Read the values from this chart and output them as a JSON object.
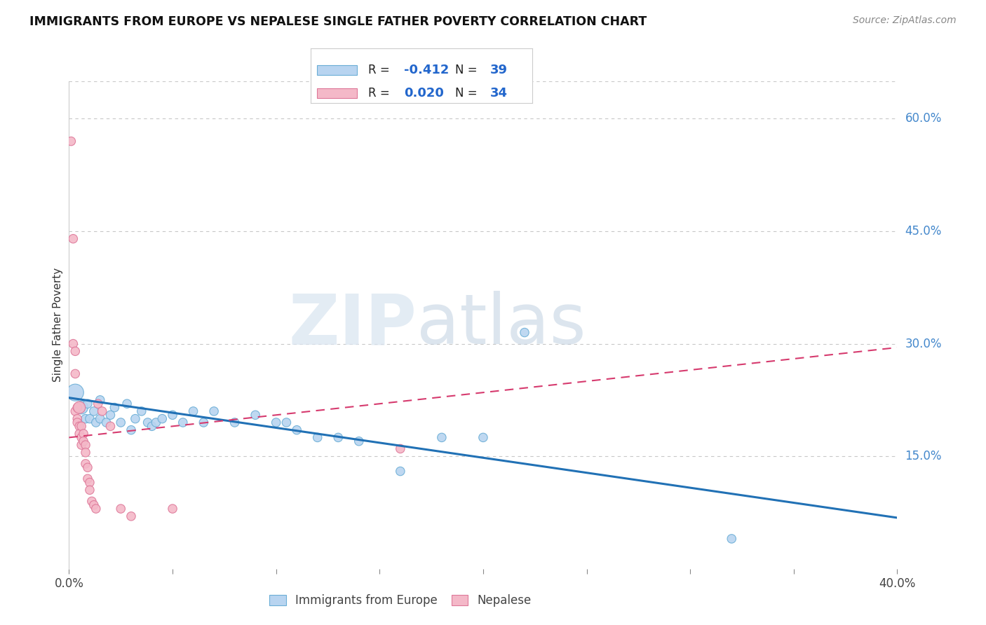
{
  "title": "IMMIGRANTS FROM EUROPE VS NEPALESE SINGLE FATHER POVERTY CORRELATION CHART",
  "source": "Source: ZipAtlas.com",
  "ylabel": "Single Father Poverty",
  "legend_labels": [
    "Immigrants from Europe",
    "Nepalese"
  ],
  "legend_r1_label": "R = ",
  "legend_r1_val": "-0.412",
  "legend_n1_label": "N = ",
  "legend_n1_val": "39",
  "legend_r2_label": "R = ",
  "legend_r2_val": "0.020",
  "legend_n2_label": "N = ",
  "legend_n2_val": "34",
  "watermark_zip": "ZIP",
  "watermark_atlas": "atlas",
  "xlim": [
    0.0,
    0.4
  ],
  "ylim": [
    0.0,
    0.65
  ],
  "xticks": [
    0.0,
    0.05,
    0.1,
    0.15,
    0.2,
    0.25,
    0.3,
    0.35,
    0.4
  ],
  "yticks_right": [
    0.6,
    0.45,
    0.3,
    0.15
  ],
  "ytick_labels_right": [
    "60.0%",
    "45.0%",
    "30.0%",
    "15.0%"
  ],
  "blue_fill": "#b8d4f0",
  "blue_edge": "#6baed6",
  "blue_line": "#2171b5",
  "pink_fill": "#f4b8c8",
  "pink_edge": "#de7899",
  "pink_line": "#d63a6e",
  "grid_color": "#c8c8c8",
  "blue_scatter_x": [
    0.003,
    0.006,
    0.008,
    0.009,
    0.01,
    0.012,
    0.013,
    0.015,
    0.015,
    0.018,
    0.02,
    0.022,
    0.025,
    0.028,
    0.03,
    0.032,
    0.035,
    0.038,
    0.04,
    0.042,
    0.045,
    0.05,
    0.055,
    0.06,
    0.065,
    0.07,
    0.08,
    0.09,
    0.1,
    0.105,
    0.11,
    0.12,
    0.13,
    0.14,
    0.16,
    0.18,
    0.2,
    0.22,
    0.32
  ],
  "blue_scatter_y": [
    0.235,
    0.215,
    0.2,
    0.22,
    0.2,
    0.21,
    0.195,
    0.2,
    0.225,
    0.195,
    0.205,
    0.215,
    0.195,
    0.22,
    0.185,
    0.2,
    0.21,
    0.195,
    0.19,
    0.195,
    0.2,
    0.205,
    0.195,
    0.21,
    0.195,
    0.21,
    0.195,
    0.205,
    0.195,
    0.195,
    0.185,
    0.175,
    0.175,
    0.17,
    0.13,
    0.175,
    0.175,
    0.315,
    0.04
  ],
  "blue_scatter_size": [
    300,
    180,
    80,
    80,
    80,
    80,
    80,
    80,
    80,
    80,
    80,
    80,
    80,
    80,
    80,
    80,
    80,
    80,
    80,
    80,
    80,
    80,
    80,
    80,
    80,
    80,
    80,
    80,
    80,
    80,
    80,
    80,
    80,
    80,
    80,
    80,
    80,
    80,
    80
  ],
  "pink_scatter_x": [
    0.001,
    0.002,
    0.002,
    0.003,
    0.003,
    0.003,
    0.004,
    0.004,
    0.004,
    0.005,
    0.005,
    0.005,
    0.006,
    0.006,
    0.006,
    0.007,
    0.007,
    0.008,
    0.008,
    0.008,
    0.009,
    0.009,
    0.01,
    0.01,
    0.011,
    0.012,
    0.013,
    0.014,
    0.016,
    0.02,
    0.025,
    0.03,
    0.05,
    0.16
  ],
  "pink_scatter_y": [
    0.57,
    0.44,
    0.3,
    0.29,
    0.26,
    0.21,
    0.215,
    0.2,
    0.195,
    0.215,
    0.19,
    0.18,
    0.19,
    0.175,
    0.165,
    0.18,
    0.17,
    0.165,
    0.155,
    0.14,
    0.135,
    0.12,
    0.115,
    0.105,
    0.09,
    0.085,
    0.08,
    0.22,
    0.21,
    0.19,
    0.08,
    0.07,
    0.08,
    0.16
  ],
  "pink_scatter_size": [
    80,
    80,
    80,
    80,
    80,
    80,
    80,
    80,
    80,
    150,
    80,
    80,
    80,
    80,
    80,
    80,
    80,
    80,
    80,
    80,
    80,
    80,
    80,
    80,
    80,
    80,
    80,
    80,
    80,
    80,
    80,
    80,
    80,
    80
  ],
  "blue_line_x": [
    0.0,
    0.4
  ],
  "blue_line_y": [
    0.228,
    0.068
  ],
  "pink_line_x": [
    0.0,
    0.4
  ],
  "pink_line_y": [
    0.175,
    0.295
  ]
}
